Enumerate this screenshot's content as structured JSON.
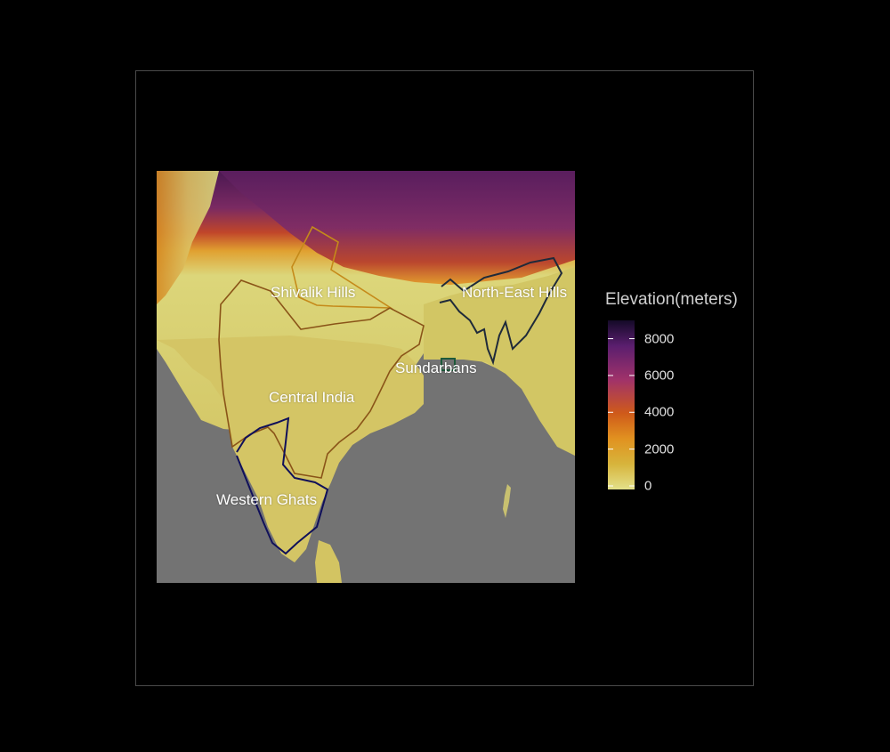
{
  "map": {
    "regions": [
      {
        "key": "shivalik",
        "name": "Shivalik Hills",
        "outline_color": "#c58a1a"
      },
      {
        "key": "northeast",
        "name": "North-East Hills",
        "outline_color": "#1f2a3a"
      },
      {
        "key": "sundarbans",
        "name": "Sundarbans",
        "outline_color": "#1d5a3a"
      },
      {
        "key": "central",
        "name": "Central India",
        "outline_color": "#8a5418"
      },
      {
        "key": "western",
        "name": "Western Ghats",
        "outline_color": "#10105a"
      }
    ],
    "colors": {
      "ocean": "#737373",
      "lowland": "#d8d67a",
      "plateau": "#c8b25a",
      "mid": "#d9892a",
      "high": "#9a3a6a",
      "peak": "#3a0f4a"
    }
  },
  "legend": {
    "title": "Elevation(meters)",
    "ticks": [
      {
        "label": "8000",
        "value": 8000
      },
      {
        "label": "6000",
        "value": 6000
      },
      {
        "label": "4000",
        "value": 4000
      },
      {
        "label": "2000",
        "value": 2000
      },
      {
        "label": "0",
        "value": 0
      }
    ],
    "max_value": 8800,
    "colors": [
      "#e3e08a",
      "#d7b43c",
      "#e19220",
      "#cf5a1a",
      "#a0326a",
      "#5a1e6e",
      "#140a28"
    ]
  }
}
